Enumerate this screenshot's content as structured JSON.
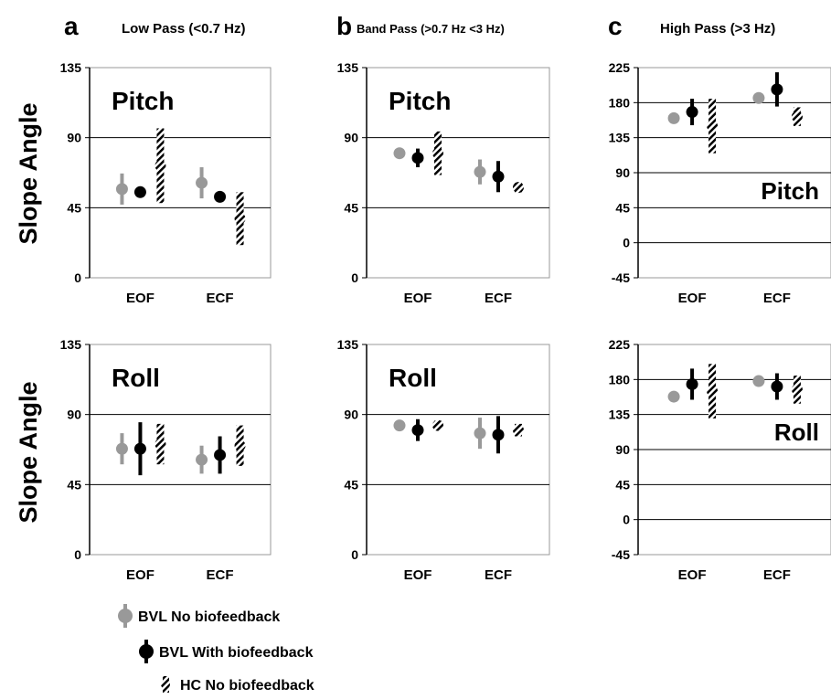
{
  "figure": {
    "panels": {
      "a": {
        "letter": "a",
        "title": "Low Pass (<0.7 Hz)"
      },
      "b": {
        "letter": "b",
        "title": "Band  Pass  (>0.7 Hz <3  Hz)"
      },
      "c": {
        "letter": "c",
        "title": "High Pass (>3 Hz)"
      }
    },
    "row_ylabels": [
      "Slope Angle",
      "Slope Angle"
    ]
  },
  "legend": {
    "items": [
      {
        "label": "BVL No biofeedback",
        "color": "#999999",
        "style": "solid"
      },
      {
        "label": "BVL With biofeedback",
        "color": "#000000",
        "style": "solid"
      },
      {
        "label": "HC No biofeedback",
        "color": "#000000",
        "style": "hatched"
      }
    ]
  },
  "chart_data": [
    {
      "id": "a-pitch",
      "type": "scatter",
      "panel": "a",
      "annotation": "Pitch",
      "categories": [
        "EOF",
        "ECF"
      ],
      "ylim": [
        0,
        135
      ],
      "yticks": [
        0,
        45,
        90,
        135
      ],
      "grid": true,
      "error_bars": true,
      "series": [
        {
          "name": "BVL No biofeedback",
          "color": "#999999",
          "style": "solid",
          "values": [
            57,
            61
          ],
          "err_low": [
            10,
            10
          ],
          "err_high": [
            10,
            10
          ]
        },
        {
          "name": "BVL With biofeedback",
          "color": "#000000",
          "style": "solid",
          "values": [
            55,
            52
          ],
          "err_low": [
            3,
            2
          ],
          "err_high": [
            3,
            2
          ]
        },
        {
          "name": "HC No biofeedback",
          "color": "#000000",
          "style": "hatched",
          "values": [
            72,
            38
          ],
          "err_low": [
            24,
            17
          ],
          "err_high": [
            24,
            17
          ]
        }
      ]
    },
    {
      "id": "b-pitch",
      "type": "scatter",
      "panel": "b",
      "annotation": "Pitch",
      "categories": [
        "EOF",
        "ECF"
      ],
      "ylim": [
        0,
        135
      ],
      "yticks": [
        0,
        45,
        90,
        135
      ],
      "grid": true,
      "error_bars": true,
      "series": [
        {
          "name": "BVL No biofeedback",
          "color": "#999999",
          "style": "solid",
          "values": [
            80,
            68
          ],
          "err_low": [
            2,
            8
          ],
          "err_high": [
            2,
            8
          ]
        },
        {
          "name": "BVL With biofeedback",
          "color": "#000000",
          "style": "solid",
          "values": [
            77,
            65
          ],
          "err_low": [
            6,
            10
          ],
          "err_high": [
            6,
            10
          ]
        },
        {
          "name": "HC No biofeedback",
          "color": "#000000",
          "style": "hatched",
          "values": [
            80,
            58
          ],
          "err_low": [
            14,
            3
          ],
          "err_high": [
            14,
            3
          ]
        }
      ]
    },
    {
      "id": "c-pitch",
      "type": "scatter",
      "panel": "c",
      "annotation": "Pitch",
      "categories": [
        "EOF",
        "ECF"
      ],
      "ylim": [
        -45,
        225
      ],
      "yticks": [
        -45,
        0,
        45,
        90,
        135,
        180,
        225
      ],
      "grid": true,
      "error_bars": true,
      "series": [
        {
          "name": "BVL No biofeedback",
          "color": "#999999",
          "style": "solid",
          "values": [
            160,
            186
          ],
          "err_low": [
            5,
            5
          ],
          "err_high": [
            5,
            5
          ]
        },
        {
          "name": "BVL With biofeedback",
          "color": "#000000",
          "style": "solid",
          "values": [
            168,
            197
          ],
          "err_low": [
            17,
            22
          ],
          "err_high": [
            17,
            22
          ]
        },
        {
          "name": "HC No biofeedback",
          "color": "#000000",
          "style": "hatched",
          "values": [
            150,
            162
          ],
          "err_low": [
            35,
            12
          ],
          "err_high": [
            35,
            12
          ]
        }
      ]
    },
    {
      "id": "a-roll",
      "type": "scatter",
      "panel": "a",
      "annotation": "Roll",
      "categories": [
        "EOF",
        "ECF"
      ],
      "ylim": [
        0,
        135
      ],
      "yticks": [
        0,
        45,
        90,
        135
      ],
      "grid": true,
      "error_bars": true,
      "series": [
        {
          "name": "BVL No biofeedback",
          "color": "#999999",
          "style": "solid",
          "values": [
            68,
            61
          ],
          "err_low": [
            10,
            9
          ],
          "err_high": [
            10,
            9
          ]
        },
        {
          "name": "BVL With biofeedback",
          "color": "#000000",
          "style": "solid",
          "values": [
            68,
            64
          ],
          "err_low": [
            17,
            12
          ],
          "err_high": [
            17,
            12
          ]
        },
        {
          "name": "HC No biofeedback",
          "color": "#000000",
          "style": "hatched",
          "values": [
            71,
            70
          ],
          "err_low": [
            13,
            13
          ],
          "err_high": [
            13,
            13
          ]
        }
      ]
    },
    {
      "id": "b-roll",
      "type": "scatter",
      "panel": "b",
      "annotation": "Roll",
      "categories": [
        "EOF",
        "ECF"
      ],
      "ylim": [
        0,
        135
      ],
      "yticks": [
        0,
        45,
        90,
        135
      ],
      "grid": true,
      "error_bars": true,
      "series": [
        {
          "name": "BVL No biofeedback",
          "color": "#999999",
          "style": "solid",
          "values": [
            83,
            78
          ],
          "err_low": [
            3,
            10
          ],
          "err_high": [
            3,
            10
          ]
        },
        {
          "name": "BVL With biofeedback",
          "color": "#000000",
          "style": "solid",
          "values": [
            80,
            77
          ],
          "err_low": [
            7,
            12
          ],
          "err_high": [
            7,
            12
          ]
        },
        {
          "name": "HC No biofeedback",
          "color": "#000000",
          "style": "hatched",
          "values": [
            83,
            80
          ],
          "err_low": [
            3,
            4
          ],
          "err_high": [
            3,
            4
          ]
        }
      ]
    },
    {
      "id": "c-roll",
      "type": "scatter",
      "panel": "c",
      "annotation": "Roll",
      "categories": [
        "EOF",
        "ECF"
      ],
      "ylim": [
        -45,
        225
      ],
      "yticks": [
        -45,
        0,
        45,
        90,
        135,
        180,
        225
      ],
      "grid": true,
      "error_bars": true,
      "series": [
        {
          "name": "BVL No biofeedback",
          "color": "#999999",
          "style": "solid",
          "values": [
            158,
            178
          ],
          "err_low": [
            4,
            5
          ],
          "err_high": [
            4,
            5
          ]
        },
        {
          "name": "BVL With biofeedback",
          "color": "#000000",
          "style": "solid",
          "values": [
            174,
            171
          ],
          "err_low": [
            20,
            17
          ],
          "err_high": [
            20,
            17
          ]
        },
        {
          "name": "HC No biofeedback",
          "color": "#000000",
          "style": "hatched",
          "values": [
            165,
            167
          ],
          "err_low": [
            35,
            18
          ],
          "err_high": [
            35,
            18
          ]
        }
      ]
    }
  ]
}
